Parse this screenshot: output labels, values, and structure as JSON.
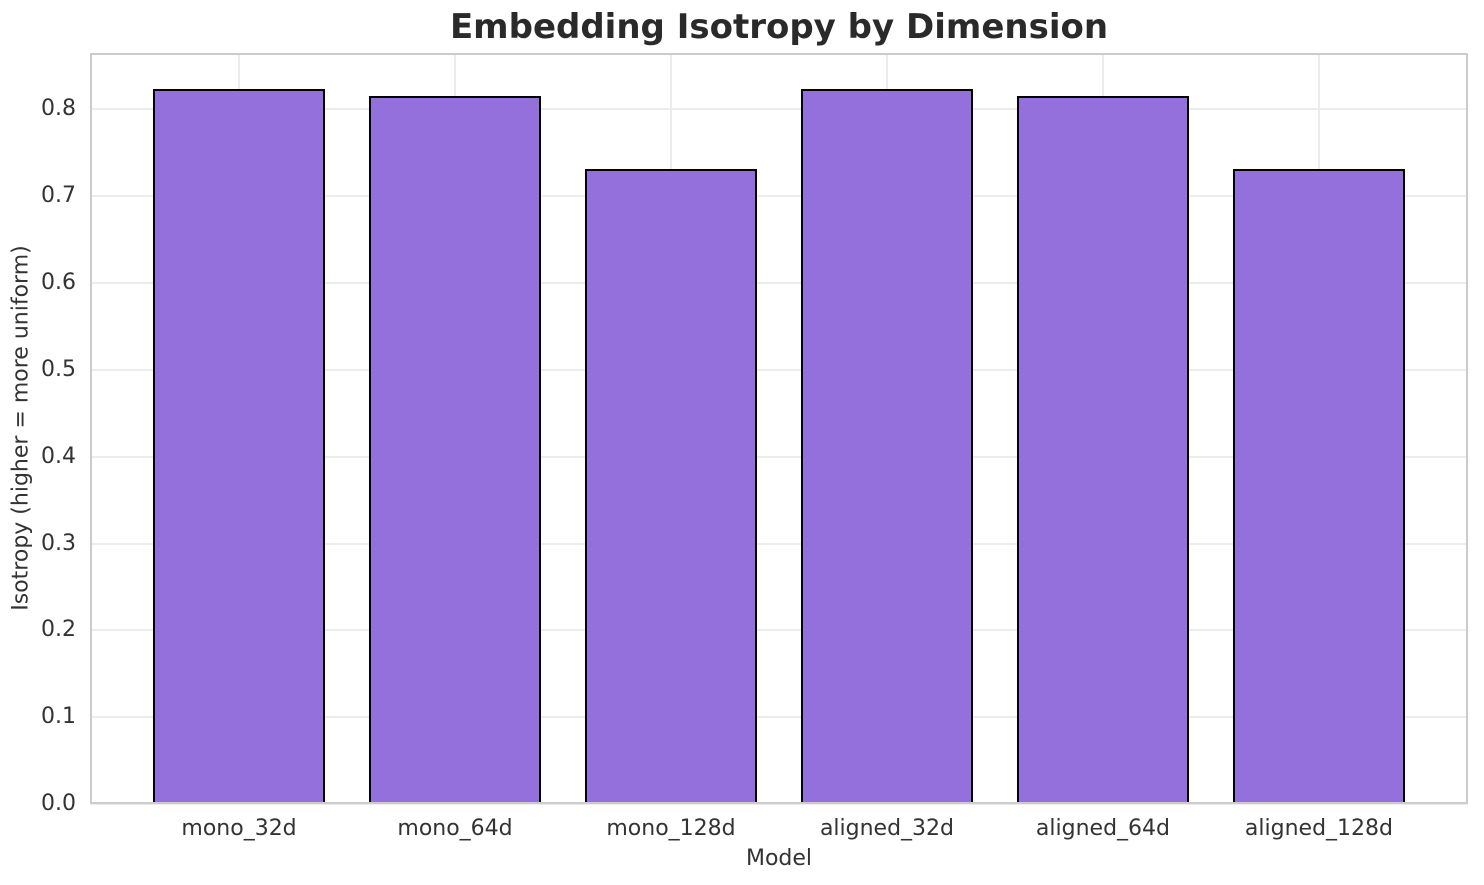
{
  "chart_data": {
    "type": "bar",
    "title": "Embedding Isotropy by Dimension",
    "xlabel": "Model",
    "ylabel": "Isotropy (higher = more uniform)",
    "categories": [
      "mono_32d",
      "mono_64d",
      "mono_128d",
      "aligned_32d",
      "aligned_64d",
      "aligned_128d"
    ],
    "values": [
      0.823,
      0.815,
      0.731,
      0.823,
      0.815,
      0.731
    ],
    "yticks": [
      {
        "value": 0.0,
        "label": "0.0"
      },
      {
        "value": 0.1,
        "label": "0.1"
      },
      {
        "value": 0.2,
        "label": "0.2"
      },
      {
        "value": 0.3,
        "label": "0.3"
      },
      {
        "value": 0.4,
        "label": "0.4"
      },
      {
        "value": 0.5,
        "label": "0.5"
      },
      {
        "value": 0.6,
        "label": "0.6"
      },
      {
        "value": 0.7,
        "label": "0.7"
      },
      {
        "value": 0.8,
        "label": "0.8"
      }
    ],
    "ylim": [
      0,
      0.865
    ],
    "xlim": [
      -0.69,
      5.69
    ],
    "bar_width_units": 0.8,
    "grid": true,
    "legend_position": "none",
    "colors": {
      "bar_fill": "#9370DB",
      "bar_edge": "#000000",
      "grid": "#ECECEC",
      "spine": "#CBCBCB",
      "title_text": "#2A2A2A",
      "tick_text": "#333333"
    }
  }
}
